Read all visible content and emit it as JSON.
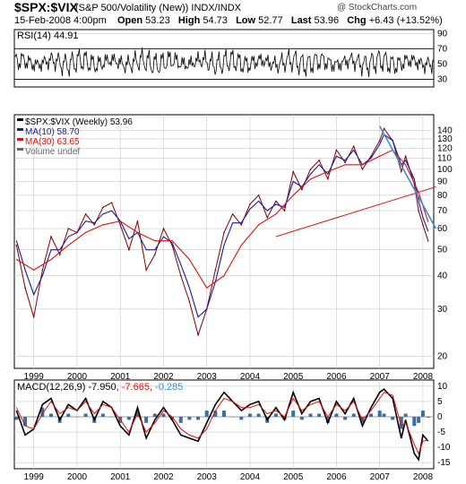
{
  "header": {
    "symbol": "$SPX:$VIX",
    "description": "(S&P 500/Volatility (New)) INDX/INDX",
    "watermark": "@ StockCharts.com",
    "date": "15-Feb-2008 4:00pm",
    "open_label": "Open",
    "open": "53.23",
    "high_label": "High",
    "high": "54.73",
    "low_label": "Low",
    "low": "52.77",
    "last_label": "Last",
    "last": "53.96",
    "chg_label": "Chg",
    "chg": "+6.43 (+13.52%)"
  },
  "colors": {
    "price": "#800000",
    "ma10": "#1a1a9c",
    "ma30": "#e01010",
    "trend_blue": "#3a8fd0",
    "trend_red": "#e01010",
    "macd_hist": "#3a6ea5",
    "grid": "#c8c8c8"
  },
  "chart_data": [
    {
      "type": "line",
      "title": "RSI(14) 44.91",
      "series": [
        {
          "name": "RSI(14)",
          "last": 44.91
        }
      ],
      "yticks": [
        90,
        70,
        50,
        30
      ],
      "ylim": [
        20,
        95
      ],
      "reference_lines": [
        70,
        30
      ]
    },
    {
      "type": "line",
      "title": "$SPX:$VIX (Weekly) 53.96",
      "yscale": "log",
      "ylim": [
        18,
        160
      ],
      "yticks": [
        140,
        130,
        120,
        110,
        100,
        90,
        80,
        70,
        60,
        50,
        40,
        30,
        20
      ],
      "xticks": [
        "1999",
        "2000",
        "2001",
        "2002",
        "2003",
        "2004",
        "2005",
        "2006",
        "2007",
        "2008"
      ],
      "legend": [
        "$SPX:$VIX (Weekly) 53.96",
        "MA(10) 58.70",
        "MA(30) 63.65",
        "Volume undef"
      ],
      "series": [
        {
          "name": "$SPX:$VIX (Weekly)",
          "last": 53.96,
          "x": [
            1998.6,
            1998.8,
            1999.0,
            1999.2,
            1999.4,
            1999.6,
            1999.8,
            2000.0,
            2000.2,
            2000.4,
            2000.6,
            2000.8,
            2001.0,
            2001.2,
            2001.4,
            2001.6,
            2001.8,
            2002.0,
            2002.2,
            2002.4,
            2002.6,
            2002.8,
            2003.0,
            2003.2,
            2003.4,
            2003.6,
            2003.8,
            2004.0,
            2004.2,
            2004.4,
            2004.6,
            2004.8,
            2005.0,
            2005.2,
            2005.4,
            2005.6,
            2005.8,
            2006.0,
            2006.2,
            2006.4,
            2006.6,
            2006.8,
            2007.0,
            2007.1,
            2007.3,
            2007.5,
            2007.6,
            2007.8,
            2007.9,
            2008.0,
            2008.12
          ],
          "values": [
            52,
            36,
            28,
            42,
            56,
            48,
            60,
            58,
            68,
            62,
            72,
            75,
            62,
            50,
            64,
            42,
            48,
            60,
            52,
            40,
            32,
            24,
            30,
            42,
            58,
            68,
            62,
            74,
            80,
            66,
            76,
            70,
            98,
            84,
            100,
            108,
            92,
            118,
            106,
            122,
            100,
            112,
            128,
            142,
            128,
            98,
            112,
            88,
            70,
            62,
            54
          ]
        },
        {
          "name": "MA(10)",
          "last": 58.7,
          "x": [
            1998.6,
            1998.8,
            1999.0,
            1999.2,
            1999.4,
            1999.6,
            1999.8,
            2000.0,
            2000.2,
            2000.4,
            2000.6,
            2000.8,
            2001.0,
            2001.2,
            2001.4,
            2001.6,
            2001.8,
            2002.0,
            2002.2,
            2002.4,
            2002.6,
            2002.8,
            2003.0,
            2003.2,
            2003.4,
            2003.6,
            2003.8,
            2004.0,
            2004.2,
            2004.4,
            2004.6,
            2004.8,
            2005.0,
            2005.2,
            2005.4,
            2005.6,
            2005.8,
            2006.0,
            2006.2,
            2006.4,
            2006.6,
            2006.8,
            2007.0,
            2007.1,
            2007.3,
            2007.5,
            2007.6,
            2007.8,
            2007.9,
            2008.0,
            2008.12
          ],
          "values": [
            54,
            42,
            34,
            40,
            50,
            50,
            56,
            58,
            64,
            63,
            68,
            70,
            64,
            55,
            58,
            50,
            50,
            56,
            53,
            44,
            36,
            28,
            30,
            38,
            52,
            63,
            63,
            71,
            76,
            70,
            74,
            72,
            90,
            86,
            96,
            104,
            96,
            112,
            108,
            118,
            104,
            110,
            124,
            135,
            128,
            104,
            108,
            92,
            76,
            66,
            58.7
          ]
        },
        {
          "name": "MA(30)",
          "last": 63.65,
          "x": [
            1998.6,
            1999.0,
            1999.4,
            1999.8,
            2000.2,
            2000.6,
            2001.0,
            2001.4,
            2001.8,
            2002.2,
            2002.6,
            2003.0,
            2003.4,
            2003.8,
            2004.2,
            2004.6,
            2005.0,
            2005.4,
            2005.8,
            2006.2,
            2006.6,
            2007.0,
            2007.3,
            2007.6,
            2007.9,
            2008.12
          ],
          "values": [
            46,
            42,
            46,
            52,
            58,
            62,
            64,
            58,
            54,
            54,
            46,
            36,
            40,
            52,
            62,
            68,
            80,
            92,
            98,
            104,
            104,
            112,
            118,
            104,
            82,
            63.65
          ]
        }
      ],
      "trendlines": [
        {
          "color": "red",
          "from": [
            2004.6,
            56
          ],
          "to": [
            2008.3,
            86
          ]
        },
        {
          "color": "blue",
          "from": [
            2007.0,
            145
          ],
          "to": [
            2008.3,
            60
          ]
        }
      ]
    },
    {
      "type": "line",
      "title": "MACD(12,26,9)",
      "values_text": [
        "-7.950",
        "-7.665",
        "-0.285"
      ],
      "ylim": [
        -17,
        12
      ],
      "yticks": [
        10,
        5,
        0,
        -5,
        -10,
        -15
      ],
      "xticks": [
        "1999",
        "2000",
        "2001",
        "2002",
        "2003",
        "2004",
        "2005",
        "2006",
        "2007",
        "2008"
      ],
      "series": [
        {
          "name": "MACD",
          "last": -7.95,
          "x": [
            1998.6,
            1998.8,
            1999.0,
            1999.2,
            1999.4,
            1999.6,
            1999.8,
            2000.0,
            2000.2,
            2000.4,
            2000.6,
            2000.8,
            2001.0,
            2001.2,
            2001.4,
            2001.6,
            2001.8,
            2002.0,
            2002.2,
            2002.4,
            2002.6,
            2002.8,
            2003.0,
            2003.2,
            2003.4,
            2003.6,
            2003.8,
            2004.0,
            2004.2,
            2004.4,
            2004.6,
            2004.8,
            2005.0,
            2005.2,
            2005.4,
            2005.6,
            2005.8,
            2006.0,
            2006.2,
            2006.4,
            2006.6,
            2006.8,
            2007.0,
            2007.1,
            2007.3,
            2007.5,
            2007.6,
            2007.8,
            2007.9,
            2008.0,
            2008.12
          ],
          "values": [
            2,
            -6,
            -4,
            4,
            6,
            -1,
            4,
            2,
            6,
            -1,
            5,
            3,
            -3,
            -6,
            3,
            -7,
            -1,
            3,
            -1,
            -6,
            -7,
            -8,
            -2,
            4,
            8,
            5,
            2,
            4,
            5,
            -1,
            3,
            -1,
            8,
            1,
            5,
            6,
            -2,
            5,
            1,
            6,
            -3,
            3,
            8,
            9,
            6,
            -7,
            -1,
            -12,
            -14,
            -6,
            -7.95
          ]
        },
        {
          "name": "Signal",
          "last": -7.665,
          "x": [
            1998.6,
            1998.8,
            1999.0,
            1999.2,
            1999.4,
            1999.6,
            1999.8,
            2000.0,
            2000.2,
            2000.4,
            2000.6,
            2000.8,
            2001.0,
            2001.2,
            2001.4,
            2001.6,
            2001.8,
            2002.0,
            2002.2,
            2002.4,
            2002.6,
            2002.8,
            2003.0,
            2003.2,
            2003.4,
            2003.6,
            2003.8,
            2004.0,
            2004.2,
            2004.4,
            2004.6,
            2004.8,
            2005.0,
            2005.2,
            2005.4,
            2005.6,
            2005.8,
            2006.0,
            2006.2,
            2006.4,
            2006.6,
            2006.8,
            2007.0,
            2007.1,
            2007.3,
            2007.5,
            2007.6,
            2007.8,
            2007.9,
            2008.0,
            2008.12
          ],
          "values": [
            3,
            -3,
            -4,
            1,
            5,
            1,
            3,
            2,
            5,
            1,
            4,
            3,
            -1,
            -5,
            1,
            -5,
            -2,
            2,
            0,
            -4,
            -6,
            -7,
            -4,
            2,
            6,
            5,
            3,
            3,
            4,
            1,
            2,
            0,
            6,
            2,
            4,
            5,
            0,
            4,
            2,
            5,
            -1,
            2,
            6,
            8,
            7,
            -3,
            -2,
            -9,
            -12,
            -8,
            -7.665
          ]
        },
        {
          "name": "Histogram",
          "last": -0.285
        }
      ]
    }
  ]
}
